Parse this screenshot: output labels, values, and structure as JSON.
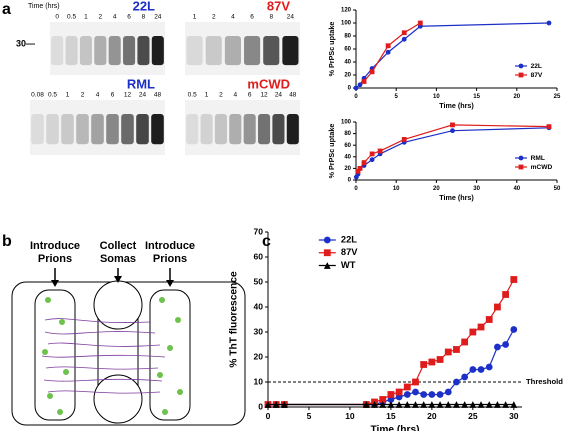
{
  "panels": [
    "a",
    "b",
    "c"
  ],
  "blots": {
    "time_label": "Time (hrs)",
    "marker": "30—",
    "items": [
      {
        "name": "22L",
        "color": "#1c2fc8",
        "lanes": [
          "0",
          "0.5",
          "1",
          "2",
          "4",
          "6",
          "8",
          "24"
        ]
      },
      {
        "name": "87V",
        "color": "#e01b1b",
        "lanes": [
          "1",
          "2",
          "4",
          "6",
          "8",
          "24"
        ]
      },
      {
        "name": "RML",
        "color": "#1c2fc8",
        "lanes": [
          "0.08",
          "0.5",
          "1",
          "2",
          "4",
          "6",
          "12",
          "24",
          "48"
        ]
      },
      {
        "name": "mCWD",
        "color": "#e01b1b",
        "lanes": [
          "0.5",
          "1",
          "2",
          "4",
          "6",
          "12",
          "24",
          "48"
        ]
      }
    ]
  },
  "diagram": {
    "labels": [
      "Introduce Prions",
      "Collect Somas",
      "Introduce Prions"
    ]
  },
  "chart_data": [
    {
      "type": "line",
      "xlabel": "Time (hrs)",
      "ylabel": "% PrPSc uptake",
      "xlim": [
        0,
        25
      ],
      "xticks": [
        0,
        5,
        10,
        15,
        20,
        25
      ],
      "ylim": [
        0,
        120
      ],
      "yticks": [
        0,
        20,
        40,
        60,
        80,
        100,
        120
      ],
      "legend": "lower right",
      "series": [
        {
          "name": "22L",
          "color": "#1c2fc8",
          "marker": "circle",
          "x": [
            0,
            0.5,
            1,
            2,
            4,
            6,
            8,
            24
          ],
          "values": [
            0,
            5,
            15,
            30,
            55,
            75,
            95,
            100
          ]
        },
        {
          "name": "87V",
          "color": "#e01b1b",
          "marker": "square",
          "x": [
            1,
            2,
            4,
            6,
            8
          ],
          "values": [
            10,
            25,
            65,
            85,
            100
          ]
        }
      ]
    },
    {
      "type": "line",
      "xlabel": "Time (hrs)",
      "ylabel": "% PrPSc uptake",
      "xlim": [
        0,
        50
      ],
      "xticks": [
        0,
        10,
        20,
        30,
        40,
        50
      ],
      "ylim": [
        0,
        100
      ],
      "yticks": [
        0,
        20,
        40,
        60,
        80,
        100
      ],
      "legend": "lower right",
      "series": [
        {
          "name": "RML",
          "color": "#1c2fc8",
          "marker": "circle",
          "x": [
            0.08,
            0.5,
            1,
            2,
            4,
            6,
            12,
            24,
            48
          ],
          "values": [
            5,
            10,
            20,
            25,
            35,
            45,
            65,
            85,
            90
          ]
        },
        {
          "name": "mCWD",
          "color": "#e01b1b",
          "marker": "square",
          "x": [
            0.5,
            1,
            2,
            4,
            6,
            12,
            24,
            48
          ],
          "values": [
            15,
            20,
            30,
            45,
            50,
            70,
            95,
            92
          ]
        }
      ]
    },
    {
      "type": "line",
      "xlabel": "Time (hrs)",
      "ylabel": "% ThT fluorescence",
      "xlim": [
        0,
        31
      ],
      "xticks": [
        0,
        5,
        10,
        15,
        20,
        25,
        30
      ],
      "ylim": [
        0,
        70
      ],
      "yticks": [
        0,
        10,
        20,
        30,
        40,
        50,
        60,
        70
      ],
      "legend": "upper left",
      "hlines": [
        {
          "y": 10,
          "label": "Threshold",
          "style": "dashed"
        }
      ],
      "series": [
        {
          "name": "22L",
          "color": "#1c2fc8",
          "marker": "circle",
          "x": [
            0,
            1,
            2,
            12,
            13,
            14,
            15,
            16,
            17,
            18,
            19,
            20,
            21,
            22,
            23,
            24,
            25,
            26,
            27,
            28,
            29,
            30
          ],
          "values": [
            1,
            1,
            1,
            1,
            1,
            2,
            3,
            4,
            5,
            6,
            5,
            5,
            5,
            6,
            10,
            12,
            15,
            15,
            16,
            24,
            25,
            31
          ]
        },
        {
          "name": "87V",
          "color": "#e01b1b",
          "marker": "square",
          "x": [
            0,
            1,
            2,
            12,
            13,
            14,
            15,
            16,
            17,
            18,
            19,
            20,
            21,
            22,
            23,
            24,
            25,
            26,
            27,
            28,
            29,
            30
          ],
          "values": [
            1,
            1,
            1,
            1,
            2,
            3,
            5,
            6,
            8,
            10,
            17,
            18,
            19,
            22,
            23,
            26,
            30,
            32,
            35,
            40,
            45,
            51
          ]
        },
        {
          "name": "WT",
          "color": "#000000",
          "marker": "triangle",
          "x": [
            0,
            1,
            2,
            12,
            13,
            14,
            15,
            16,
            17,
            18,
            19,
            20,
            21,
            22,
            23,
            24,
            25,
            26,
            27,
            28,
            29,
            30
          ],
          "values": [
            1,
            1,
            1,
            1,
            1,
            1,
            1,
            1,
            1,
            1,
            1,
            1,
            1,
            1,
            1,
            1,
            1,
            1,
            1,
            1,
            1,
            1
          ]
        }
      ]
    }
  ]
}
